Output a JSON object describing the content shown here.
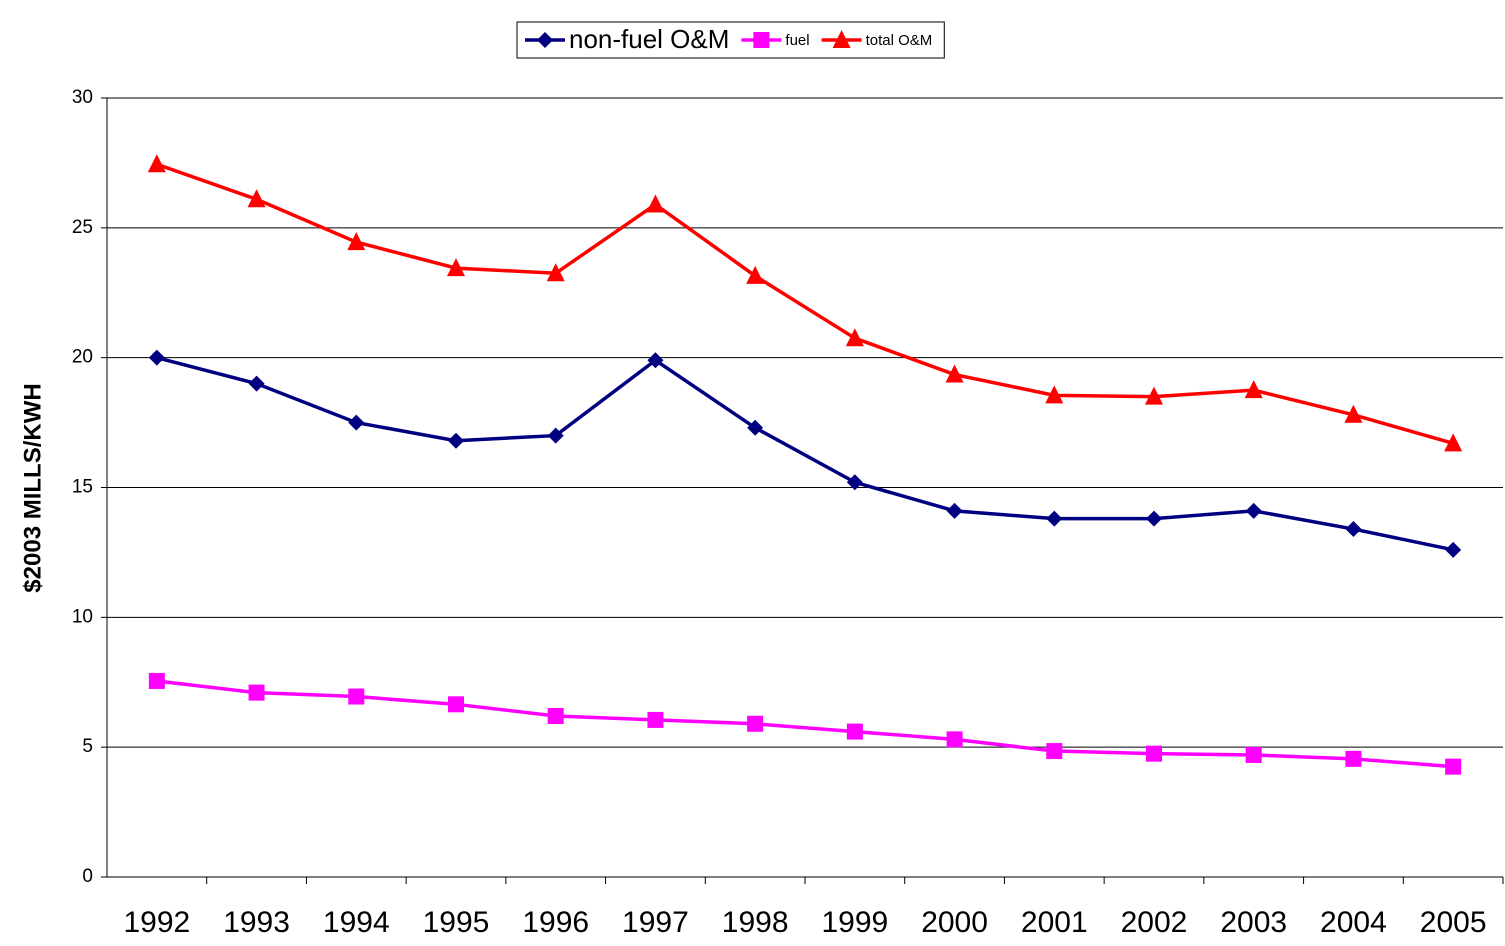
{
  "chart_data": {
    "type": "line",
    "y_label": "$2003 MILLS/KWH",
    "categories": [
      "1992",
      "1993",
      "1994",
      "1995",
      "1996",
      "1997",
      "1998",
      "1999",
      "2000",
      "2001",
      "2002",
      "2003",
      "2004",
      "2005"
    ],
    "series": [
      {
        "name": "non-fuel O&M",
        "color": "#000080",
        "marker": "diamond",
        "values": [
          20.0,
          19.0,
          17.5,
          16.8,
          17.0,
          19.9,
          17.3,
          15.2,
          14.1,
          13.8,
          13.8,
          14.1,
          13.4,
          12.6
        ]
      },
      {
        "name": "fuel",
        "color": "#FF00FF",
        "marker": "square",
        "values": [
          7.55,
          7.1,
          6.95,
          6.65,
          6.2,
          6.05,
          5.9,
          5.6,
          5.3,
          4.85,
          4.75,
          4.7,
          4.55,
          4.25
        ]
      },
      {
        "name": "total O&M",
        "color": "#FF0000",
        "marker": "triangle",
        "values": [
          27.45,
          26.1,
          24.45,
          23.45,
          23.25,
          25.9,
          23.15,
          20.75,
          19.35,
          18.55,
          18.5,
          18.75,
          17.8,
          16.7
        ]
      }
    ],
    "ylim": [
      0,
      30
    ],
    "yticks": [
      0,
      5,
      10,
      15,
      20,
      25,
      30
    ],
    "grid": true,
    "legend": "top"
  }
}
